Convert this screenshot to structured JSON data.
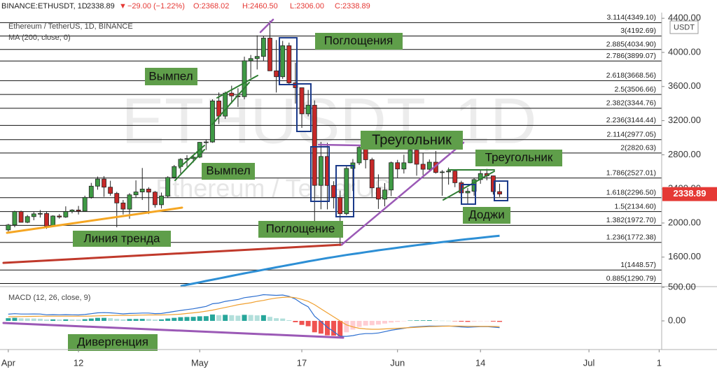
{
  "chart_data": {
    "type": "candlestick",
    "header": {
      "symbol": "BINANCE:ETHUSDT, 1D",
      "last": "2338.89",
      "arrow": "▼",
      "change": "−29.00 (−1.22%)",
      "open": "O:2368.02",
      "high": "H:2460.50",
      "low": "L:2306.00",
      "close": "C:2338.89"
    },
    "legend": {
      "instrument": "Ethereum / TetherUS, 1D, BINANCE",
      "ma": "MA (200, close, 0)",
      "macd": "MACD (12, 26, close, 9)"
    },
    "watermark": {
      "main": "ETHUSDT, 1D",
      "sub": "Ethereum / TetherUS"
    },
    "currency": "USDT",
    "up_color": "#3f9a45",
    "down_color": "#c62828",
    "x": [
      0,
      1,
      2,
      3,
      4,
      5,
      6,
      7,
      8,
      9,
      10,
      11,
      12,
      13,
      14,
      15,
      16,
      17,
      18,
      19,
      20,
      21,
      22,
      23,
      24,
      25,
      26,
      27,
      28,
      29,
      30,
      31,
      32,
      33,
      34,
      35,
      36,
      37,
      38,
      39,
      40,
      41,
      42,
      43,
      44,
      45,
      46,
      47,
      48,
      49,
      50,
      51,
      52,
      53,
      54,
      55,
      56,
      57,
      58,
      59,
      60,
      61,
      62,
      63,
      64,
      65,
      66,
      67,
      68,
      69,
      70,
      71,
      72,
      73,
      74,
      75,
      76,
      77
    ],
    "open": [
      1919,
      1977,
      2134,
      2008,
      2075,
      2107,
      2112,
      1964,
      2082,
      2070,
      2135,
      2152,
      2139,
      2300,
      2432,
      2515,
      2420,
      2347,
      2235,
      2163,
      2330,
      2364,
      2398,
      2362,
      2214,
      2316,
      2534,
      2662,
      2747,
      2756,
      2772,
      2946,
      2950,
      3431,
      3253,
      3523,
      3490,
      3481,
      3902,
      3928,
      3953,
      4168,
      3784,
      3715,
      4079,
      3643,
      3586,
      3280,
      3381,
      2441,
      2780,
      2440,
      2300,
      2109,
      2640,
      2705,
      2887,
      2742,
      2412,
      2280,
      2387,
      2707,
      2633,
      2706,
      2855,
      2689,
      2630,
      2713,
      2592,
      2599,
      2609,
      2472,
      2353,
      2372,
      2509,
      2580,
      2553,
      2368.02
    ],
    "high": [
      1990,
      2144,
      2145,
      2094,
      2128,
      2152,
      2130,
      2091,
      2105,
      2195,
      2162,
      2200,
      2320,
      2470,
      2545,
      2550,
      2495,
      2365,
      2270,
      2350,
      2500,
      2645,
      2420,
      2375,
      2357,
      2548,
      2680,
      2760,
      2795,
      2795,
      2950,
      2980,
      3450,
      3530,
      3540,
      3610,
      3580,
      3950,
      3970,
      4200,
      4190,
      4372,
      4145,
      4135,
      4115,
      3880,
      3586,
      3560,
      3437,
      2950,
      2940,
      2490,
      2380,
      2680,
      2750,
      2910,
      2895,
      2765,
      2570,
      2468,
      2720,
      2740,
      2800,
      2890,
      2860,
      2820,
      2745,
      2845,
      2620,
      2650,
      2615,
      2495,
      2410,
      2530,
      2620,
      2635,
      2555,
      2460.5
    ],
    "low": [
      1900,
      1950,
      2007,
      1998,
      2032,
      2064,
      1932,
      1957,
      2051,
      2060,
      2113,
      2100,
      2131,
      2286,
      2390,
      2307,
      2320,
      1950,
      2100,
      2050,
      2300,
      2270,
      2105,
      2180,
      2170,
      2300,
      2520,
      2580,
      2660,
      2710,
      2760,
      2856,
      2940,
      3160,
      3220,
      3400,
      3360,
      3450,
      3700,
      3800,
      3900,
      3783,
      3530,
      3690,
      3630,
      3400,
      3115,
      3250,
      1900,
      2161,
      2160,
      2170,
      1730,
      2090,
      2375,
      2680,
      2640,
      2305,
      2165,
      2195,
      2315,
      2530,
      2580,
      2700,
      2555,
      2560,
      2615,
      2580,
      2320,
      2450,
      2420,
      2330,
      2225,
      2320,
      2460,
      2500,
      2333,
      2306
    ],
    "close": [
      1977,
      2134,
      2008,
      2075,
      2107,
      2112,
      1964,
      2082,
      2070,
      2135,
      2152,
      2139,
      2300,
      2432,
      2515,
      2420,
      2347,
      2235,
      2163,
      2330,
      2364,
      2398,
      2362,
      2214,
      2316,
      2534,
      2662,
      2747,
      2756,
      2772,
      2946,
      2950,
      3431,
      3253,
      3523,
      3490,
      3481,
      3902,
      3928,
      3953,
      4168,
      3784,
      3715,
      4079,
      3643,
      3586,
      3280,
      3381,
      2441,
      2780,
      2440,
      2300,
      2109,
      2640,
      2705,
      2887,
      2742,
      2412,
      2280,
      2387,
      2707,
      2633,
      2706,
      2855,
      2689,
      2630,
      2713,
      2592,
      2599,
      2609,
      2472,
      2353,
      2372,
      2509,
      2580,
      2553,
      2368,
      2338.89
    ],
    "ma": {
      "name": "MA (200, close, 0)",
      "color": "#2d8fd5",
      "values": [
        null,
        null,
        null,
        null,
        null,
        null,
        null,
        null,
        null,
        null,
        null,
        null,
        null,
        null,
        null,
        null,
        null,
        null,
        null,
        null,
        null,
        null,
        null,
        null,
        null,
        null,
        null,
        1260,
        1275,
        1290,
        1305,
        1320,
        1335,
        1350,
        1365,
        1380,
        1395,
        1410,
        1424,
        1438,
        1452,
        1466,
        1480,
        1494,
        1508,
        1522,
        1536,
        1550,
        1563,
        1576,
        1589,
        1601,
        1613,
        1625,
        1636,
        1647,
        1658,
        1669,
        1680,
        1690,
        1700,
        1710,
        1720,
        1730,
        1740,
        1749,
        1758,
        1767,
        1776,
        1785,
        1794,
        1803,
        1811,
        1819,
        1827,
        1835,
        1843,
        1850
      ]
    },
    "xlim": [
      -1.3,
      102.4
    ],
    "xticks": [
      {
        "value": 0,
        "label": "Apr"
      },
      {
        "value": 11,
        "label": "12"
      },
      {
        "value": 30,
        "label": "May"
      },
      {
        "value": 46,
        "label": "17"
      },
      {
        "value": 61,
        "label": "Jun"
      },
      {
        "value": 74,
        "label": "14"
      },
      {
        "value": 91,
        "label": "Jul"
      },
      {
        "value": 102,
        "label": "1"
      }
    ],
    "ylim": [
      1254,
      4467
    ],
    "yticks": [
      {
        "value": 1600,
        "label": "1600.00"
      },
      {
        "value": 2000,
        "label": "2000.00"
      },
      {
        "value": 2400,
        "label": "2400.00"
      },
      {
        "value": 2800,
        "label": "2800.00"
      },
      {
        "value": 3200,
        "label": "3200.00"
      },
      {
        "value": 3600,
        "label": "3600.00"
      },
      {
        "value": 4000,
        "label": "4000.00"
      },
      {
        "value": 4400,
        "label": "4400.00"
      }
    ],
    "fib_levels": [
      {
        "value": 4349.1,
        "label": "3.114(4349.10)"
      },
      {
        "value": 4192.69,
        "label": "3(4192.69)"
      },
      {
        "value": 4034.9,
        "label": "2.885(4034.90)"
      },
      {
        "value": 3899.07,
        "label": "2.786(3899.07)"
      },
      {
        "value": 3668.56,
        "label": "2.618(3668.56)"
      },
      {
        "value": 3506.66,
        "label": "2.5(3506.66)"
      },
      {
        "value": 3344.76,
        "label": "2.382(3344.76)"
      },
      {
        "value": 3144.44,
        "label": "2.236(3144.44)"
      },
      {
        "value": 2977.05,
        "label": "2.114(2977.05)"
      },
      {
        "value": 2820.63,
        "label": "2(2820.63)"
      },
      {
        "value": 2527.01,
        "label": "1.786(2527.01)"
      },
      {
        "value": 2296.5,
        "label": "1.618(2296.50)"
      },
      {
        "value": 2134.6,
        "label": "1.5(2134.60)"
      },
      {
        "value": 1972.7,
        "label": "1.382(1972.70)"
      },
      {
        "value": 1772.38,
        "label": "1.236(1772.38)"
      },
      {
        "value": 1448.57,
        "label": "1(1448.57)"
      },
      {
        "value": 1290.79,
        "label": "0.885(1290.79)"
      }
    ],
    "annotations": [
      "Поглощения",
      "Вымпел",
      "Вымпел",
      "Линия тренда",
      "Поглощение",
      "Треугольник",
      "Треугольник",
      "Доджи",
      "Дивергенция"
    ],
    "macd": {
      "ylim": [
        -427,
        510
      ],
      "yticks": [
        {
          "value": 500,
          "label": "500.00"
        },
        {
          "value": 0,
          "label": "0.00"
        }
      ],
      "macd_line": {
        "color": "#2d6fd0",
        "values": [
          100,
          107,
          102,
          102,
          103,
          102,
          90,
          92,
          90,
          92,
          90,
          88,
          95,
          107,
          120,
          123,
          120,
          112,
          104,
          110,
          112,
          116,
          116,
          108,
          110,
          125,
          140,
          155,
          168,
          180,
          198,
          215,
          255,
          265,
          290,
          305,
          318,
          345,
          358,
          372,
          390,
          385,
          380,
          385,
          365,
          325,
          260,
          210,
          70,
          -10,
          -95,
          -160,
          -230,
          -230,
          -220,
          -200,
          -190,
          -190,
          -180,
          -160,
          -140,
          -125,
          -110,
          -95,
          -87,
          -82,
          -76,
          -78,
          -77,
          -76,
          -82,
          -90,
          -95,
          -91,
          -87,
          -85,
          -93,
          -100
        ]
      },
      "signal_line": {
        "color": "#f0a030",
        "values": [
          60,
          62,
          64,
          66,
          68,
          70,
          70,
          70,
          70,
          70,
          70,
          70,
          70,
          72,
          75,
          78,
          80,
          82,
          82,
          82,
          84,
          86,
          88,
          88,
          88,
          90,
          95,
          100,
          110,
          120,
          130,
          145,
          160,
          180,
          200,
          220,
          240,
          255,
          270,
          290,
          305,
          325,
          340,
          350,
          355,
          345,
          320,
          290,
          240,
          180,
          120,
          60,
          0,
          -60,
          -90,
          -110,
          -120,
          -125,
          -125,
          -120,
          -115,
          -110,
          -105,
          -100,
          -95,
          -90,
          -86,
          -83,
          -80,
          -78,
          -77,
          -78,
          -80,
          -81,
          -82,
          -82,
          -83,
          -85
        ]
      },
      "histogram": {
        "values": [
          40,
          45,
          38,
          36,
          35,
          32,
          20,
          22,
          20,
          22,
          20,
          18,
          25,
          35,
          45,
          45,
          40,
          30,
          22,
          28,
          28,
          30,
          28,
          20,
          22,
          35,
          45,
          55,
          58,
          60,
          68,
          70,
          95,
          85,
          90,
          85,
          78,
          90,
          88,
          82,
          85,
          60,
          40,
          35,
          10,
          -20,
          -60,
          -80,
          -170,
          -190,
          -215,
          -220,
          -230,
          -170,
          -130,
          -90,
          -70,
          -65,
          -55,
          -40,
          -25,
          -15,
          -5,
          5,
          8,
          8,
          10,
          5,
          3,
          2,
          -5,
          -12,
          -15,
          -10,
          -5,
          -3,
          -10,
          -15
        ]
      }
    }
  }
}
